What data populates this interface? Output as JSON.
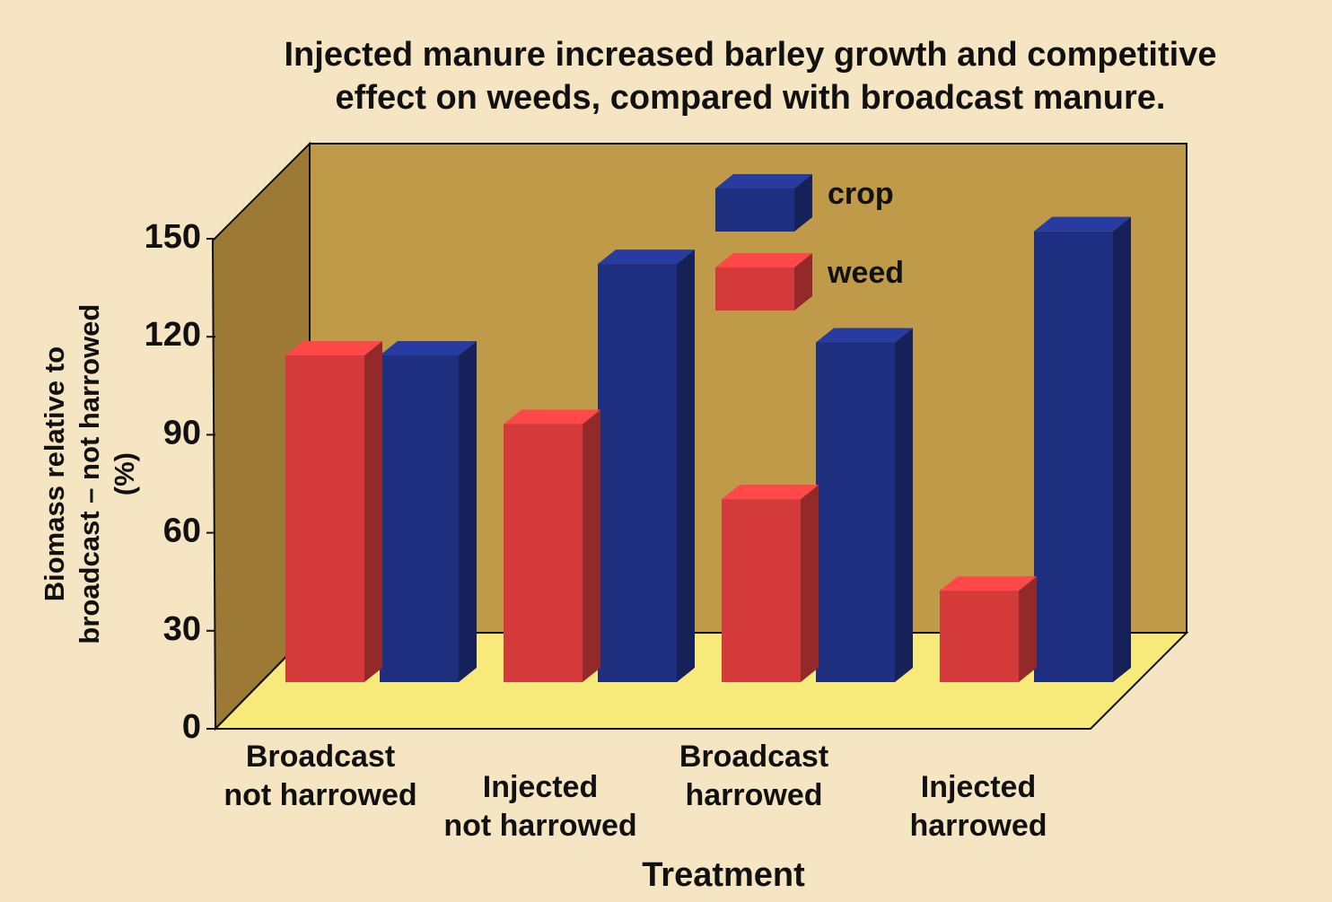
{
  "chart_data": {
    "type": "bar3d",
    "title": "Injected manure increased barley growth and competitive\neffect on weeds, compared with broadcast manure.",
    "x_label": "Treatment",
    "y_label": "Biomass relative to\nbroadcast – not harrowed (%)",
    "categories": [
      "Broadcast\nnot harrowed",
      "Injected\nnot harrowed",
      "Broadcast\nharrowed",
      "Injected\nharrowed"
    ],
    "series": [
      {
        "name": "crop",
        "color": "#1f2f80",
        "values": [
          100,
          128,
          104,
          138
        ]
      },
      {
        "name": "weed",
        "color": "#d43a3a",
        "values": [
          100,
          79,
          56,
          28
        ]
      }
    ],
    "ylim": [
      0,
      150
    ],
    "yticks": [
      0,
      30,
      60,
      90,
      120,
      150
    ],
    "legend": "top"
  }
}
